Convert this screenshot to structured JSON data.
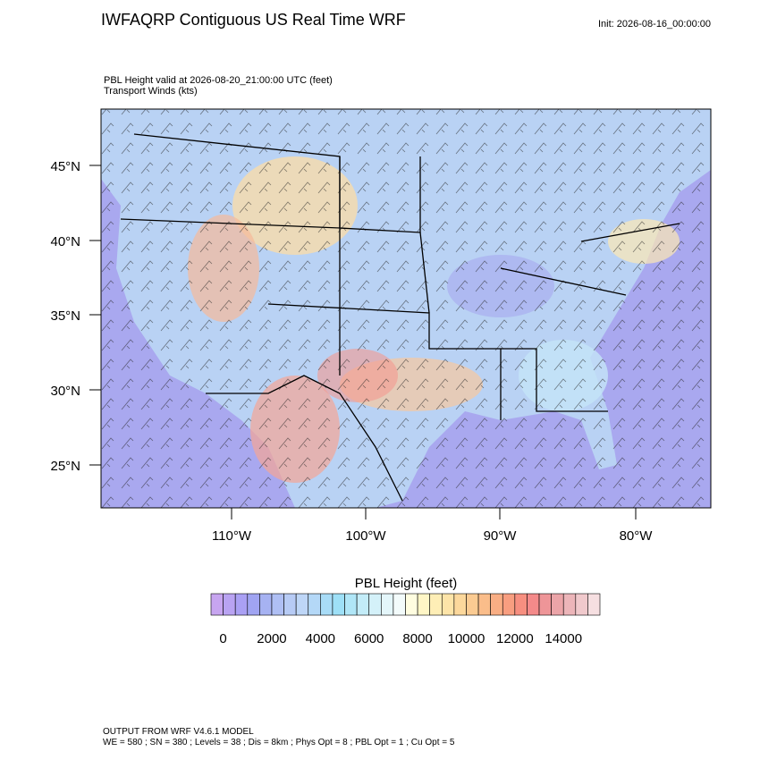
{
  "header": {
    "title": "IWFAQRP Contiguous US Real Time WRF",
    "init": "Init: 2026-08-16_00:00:00"
  },
  "map": {
    "subtitle": [
      "PBL Height valid at 2026-08-20_21:00:00 UTC   (feet)",
      "Transport Winds   (kts)"
    ],
    "lat_labels": [
      "45°N",
      "40°N",
      "35°N",
      "30°N",
      "25°N"
    ],
    "lon_labels": [
      "110°W",
      "100°W",
      "90°W",
      "80°W"
    ]
  },
  "colorbar": {
    "title": "PBL Height  (feet)",
    "colors": [
      "#c7a5f0",
      "#b9a3f2",
      "#aaa0f4",
      "#a0a4f2",
      "#a6b2f2",
      "#afbff4",
      "#b7cbf5",
      "#bed6f7",
      "#b4d8f7",
      "#a8dcf7",
      "#9ee0f7",
      "#b0e6f7",
      "#c3ecf8",
      "#d4f1f9",
      "#e4f6fa",
      "#f3fbfb",
      "#fffde0",
      "#fff6c6",
      "#feeeb6",
      "#fde4a8",
      "#fcd89c",
      "#fbcb92",
      "#fabd8a",
      "#f9ae84",
      "#f89e80",
      "#f78f80",
      "#f48a8a",
      "#ee9598",
      "#eba4a8",
      "#ecb5b9",
      "#f0c9cc",
      "#f6dfe1"
    ],
    "tick_labels": [
      "0",
      "2000",
      "4000",
      "6000",
      "8000",
      "10000",
      "12000",
      "14000"
    ]
  },
  "footer": [
    "OUTPUT FROM WRF V4.6.1 MODEL",
    "WE = 580 ; SN = 380 ; Levels = 38 ; Dis = 8km ; Phys Opt = 8 ; PBL Opt = 1 ; Cu Opt = 5"
  ]
}
